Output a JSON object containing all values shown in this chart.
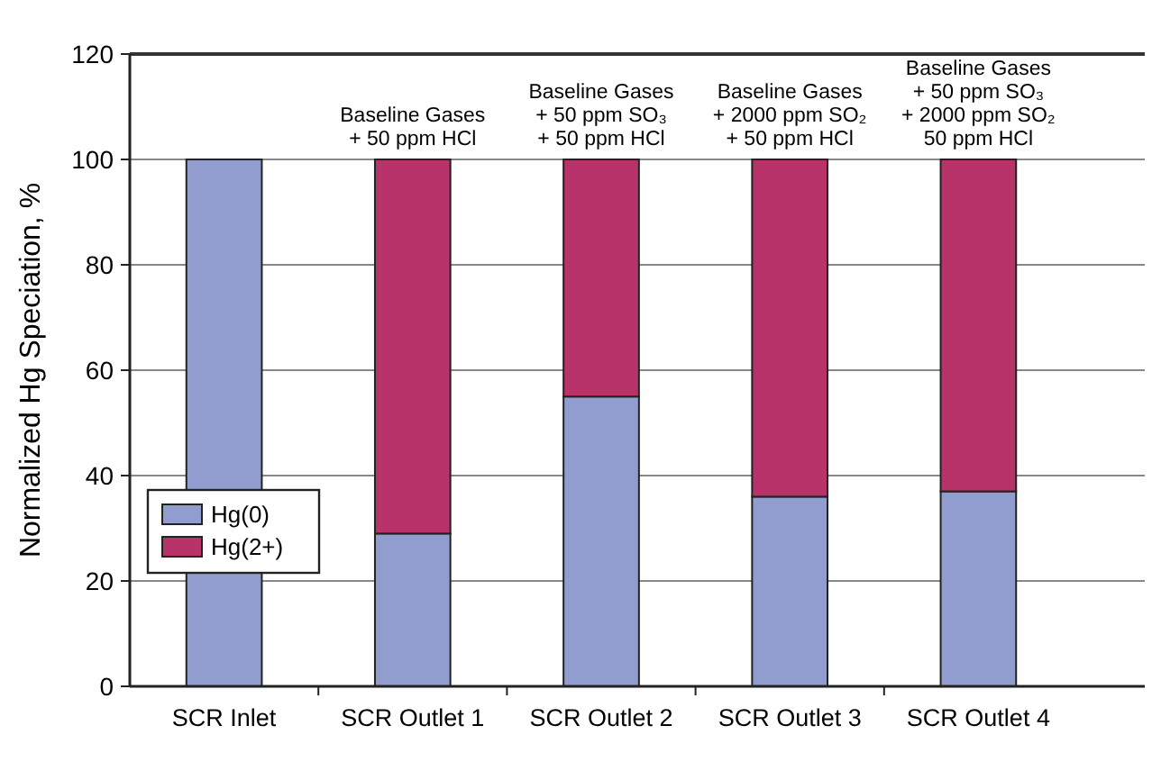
{
  "chart_data": {
    "type": "bar",
    "stacked": true,
    "ylabel": "Normalized Hg Speciation, %",
    "categories": [
      "SCR Inlet",
      "SCR Outlet 1",
      "SCR Outlet 2",
      "SCR Outlet 3",
      "SCR Outlet 4"
    ],
    "series": [
      {
        "name": "Hg(0)",
        "color": "#929dcf",
        "values": [
          100,
          29,
          55,
          36,
          37
        ]
      },
      {
        "name": "Hg(2+)",
        "color": "#b8336a",
        "values": [
          0,
          71,
          45,
          64,
          63
        ]
      }
    ],
    "ylim": [
      0,
      120
    ],
    "yticks": [
      0,
      20,
      40,
      60,
      80,
      100,
      120
    ],
    "grid": "y",
    "legend": "bottom left",
    "annotations": [
      {
        "text": "Baseline Gases\n+ 50 ppm HCl",
        "x": "SCR Outlet 1",
        "y": 100
      },
      {
        "text": "Baseline Gases\n+ 50 ppm SO₃\n+ 50 ppm HCl",
        "x": "SCR Outlet 2",
        "y": 100
      },
      {
        "text": "Baseline Gases\n+ 2000 ppm SO₂\n+ 50 ppm HCl",
        "x": "SCR Outlet 3",
        "y": 100
      },
      {
        "text": "Baseline Gases\n+ 50 ppm SO₃\n+ 2000 ppm SO₂\n50 ppm HCl",
        "x": "SCR Outlet 4",
        "y": 100
      }
    ]
  }
}
